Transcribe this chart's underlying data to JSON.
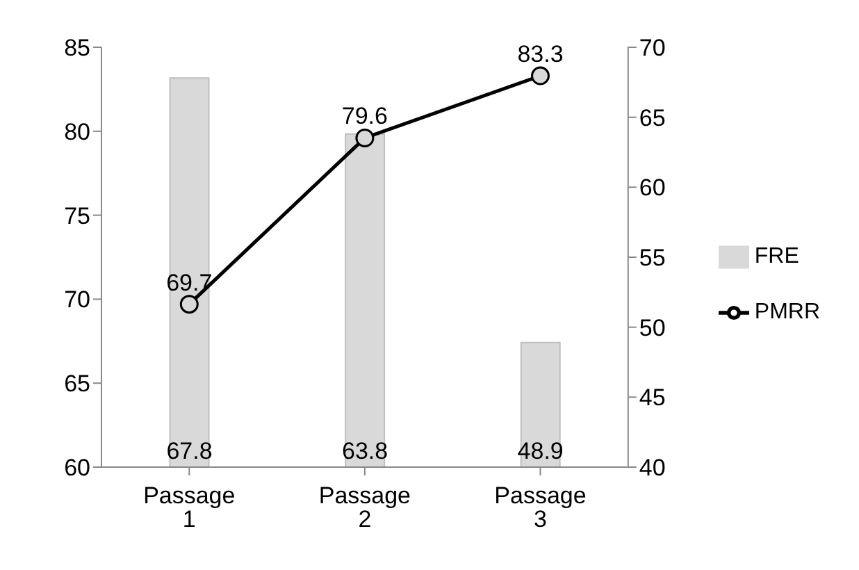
{
  "chart_data": {
    "type": "bar",
    "categories": [
      "Passage 1",
      "Passage 2",
      "Passage 3"
    ],
    "series": [
      {
        "name": "FRE",
        "axis": "y2",
        "color": "#d9d9d9",
        "values": [
          67.8,
          63.8,
          48.9
        ]
      },
      {
        "name": "PMRR",
        "type": "line",
        "color": "#000000",
        "values": [
          69.7,
          79.6,
          83.3
        ]
      }
    ],
    "ylim": [
      60,
      85
    ],
    "yticks": [
      60,
      65,
      70,
      75,
      80,
      85
    ],
    "y2lim": [
      40,
      70
    ],
    "y2ticks": [
      40,
      45,
      50,
      55,
      60,
      65,
      70
    ],
    "data_labels": true,
    "legend": "right",
    "marker": "circle",
    "line_style": "solid"
  }
}
